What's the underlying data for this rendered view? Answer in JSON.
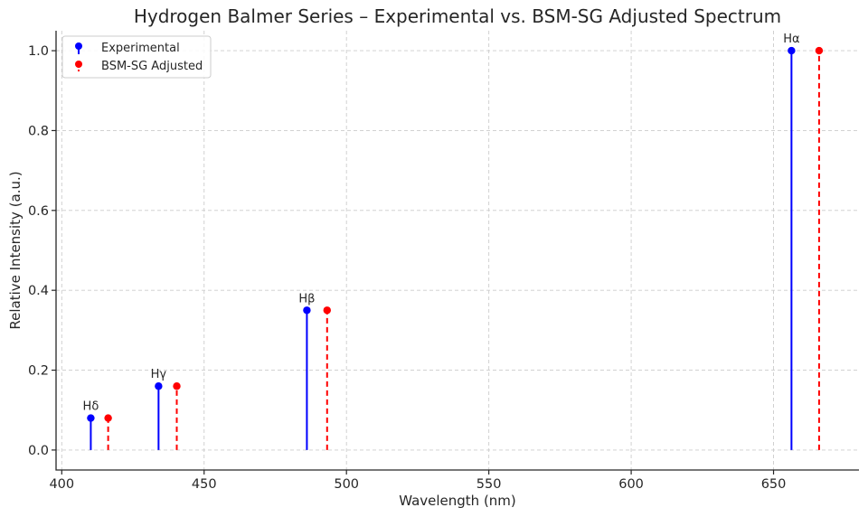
{
  "chart_data": {
    "type": "scatter",
    "subtype": "stem",
    "title": "Hydrogen Balmer Series – Experimental vs. BSM-SG Adjusted Spectrum",
    "xlabel": "Wavelength (nm)",
    "ylabel": "Relative Intensity (a.u.)",
    "xlim": [
      398,
      680
    ],
    "ylim": [
      -0.05,
      1.05
    ],
    "xticks": [
      400,
      450,
      500,
      550,
      600,
      650
    ],
    "yticks": [
      0.0,
      0.2,
      0.4,
      0.6,
      0.8,
      1.0
    ],
    "xtick_labels": [
      "400",
      "450",
      "500",
      "550",
      "600",
      "650"
    ],
    "ytick_labels": [
      "0.0",
      "0.2",
      "0.4",
      "0.6",
      "0.8",
      "1.0"
    ],
    "grid": true,
    "legend_position": "top-left",
    "series": [
      {
        "name": "Experimental",
        "color": "#0000ff",
        "line_style": "solid",
        "x": [
          656.3,
          486.1,
          434.0,
          410.2
        ],
        "y": [
          1.0,
          0.35,
          0.16,
          0.08
        ]
      },
      {
        "name": "BSM-SG Adjusted",
        "color": "#ff0000",
        "line_style": "dashed",
        "x": [
          666.0,
          493.2,
          440.4,
          416.3
        ],
        "y": [
          1.0,
          0.35,
          0.16,
          0.08
        ]
      }
    ],
    "annotations": [
      {
        "text": "Hα",
        "x": 656.3,
        "y": 1.0
      },
      {
        "text": "Hβ",
        "x": 486.1,
        "y": 0.35
      },
      {
        "text": "Hγ",
        "x": 434.0,
        "y": 0.16
      },
      {
        "text": "Hδ",
        "x": 410.2,
        "y": 0.08
      }
    ]
  }
}
